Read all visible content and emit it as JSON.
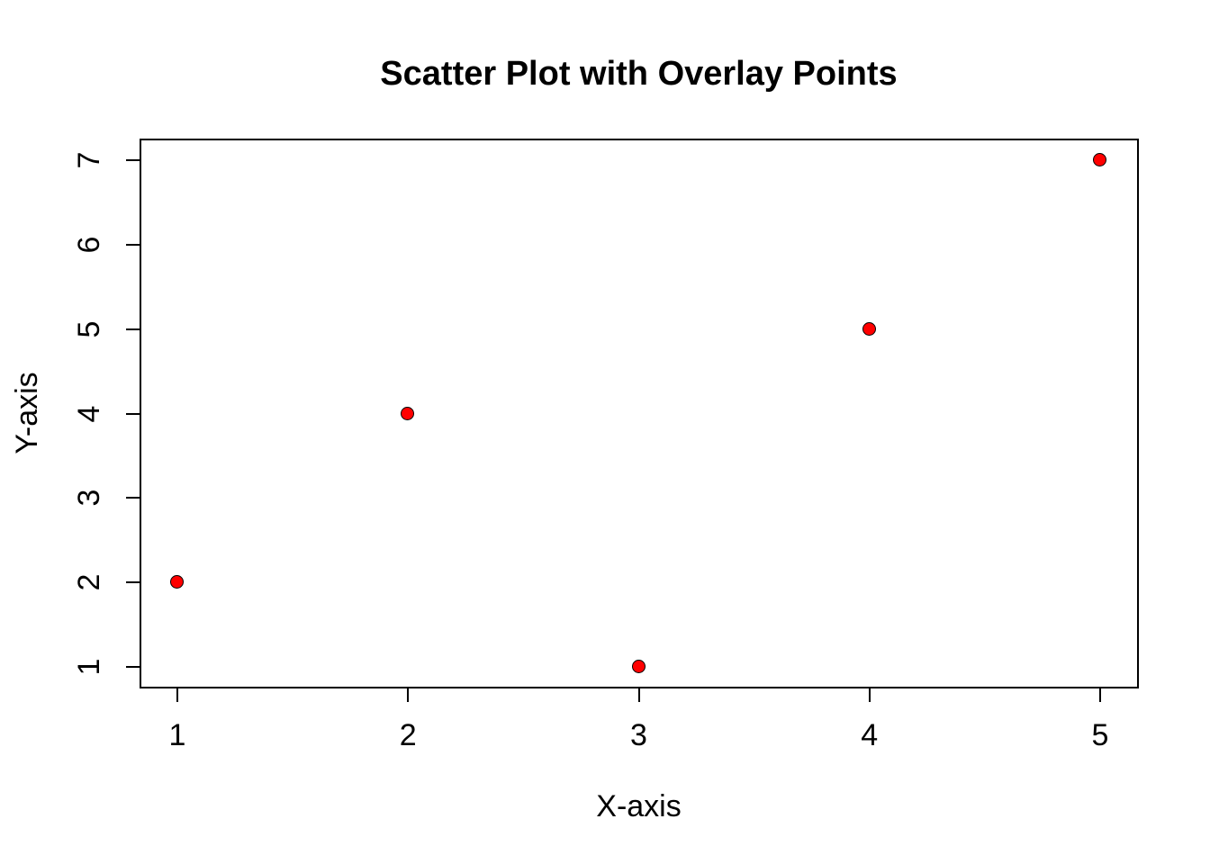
{
  "colors": {
    "background": "#ffffff",
    "axis_and_text": "#000000",
    "point_fill": "#ff0000",
    "point_border": "#000000"
  },
  "chart_data": {
    "type": "scatter",
    "title": "Scatter Plot with Overlay Points",
    "xlabel": "X-axis",
    "ylabel": "Y-axis",
    "points": [
      {
        "x": 1,
        "y": 2
      },
      {
        "x": 2,
        "y": 4
      },
      {
        "x": 3,
        "y": 1
      },
      {
        "x": 4,
        "y": 5
      },
      {
        "x": 5,
        "y": 7
      }
    ],
    "x_ticks": [
      "1",
      "2",
      "3",
      "4",
      "5"
    ],
    "y_ticks": [
      "1",
      "2",
      "3",
      "4",
      "5",
      "6",
      "7"
    ],
    "xlim": [
      1,
      5
    ],
    "ylim": [
      1,
      7
    ],
    "grid": false,
    "legend": "none",
    "point_style": "filled-circle-with-black-outline"
  }
}
